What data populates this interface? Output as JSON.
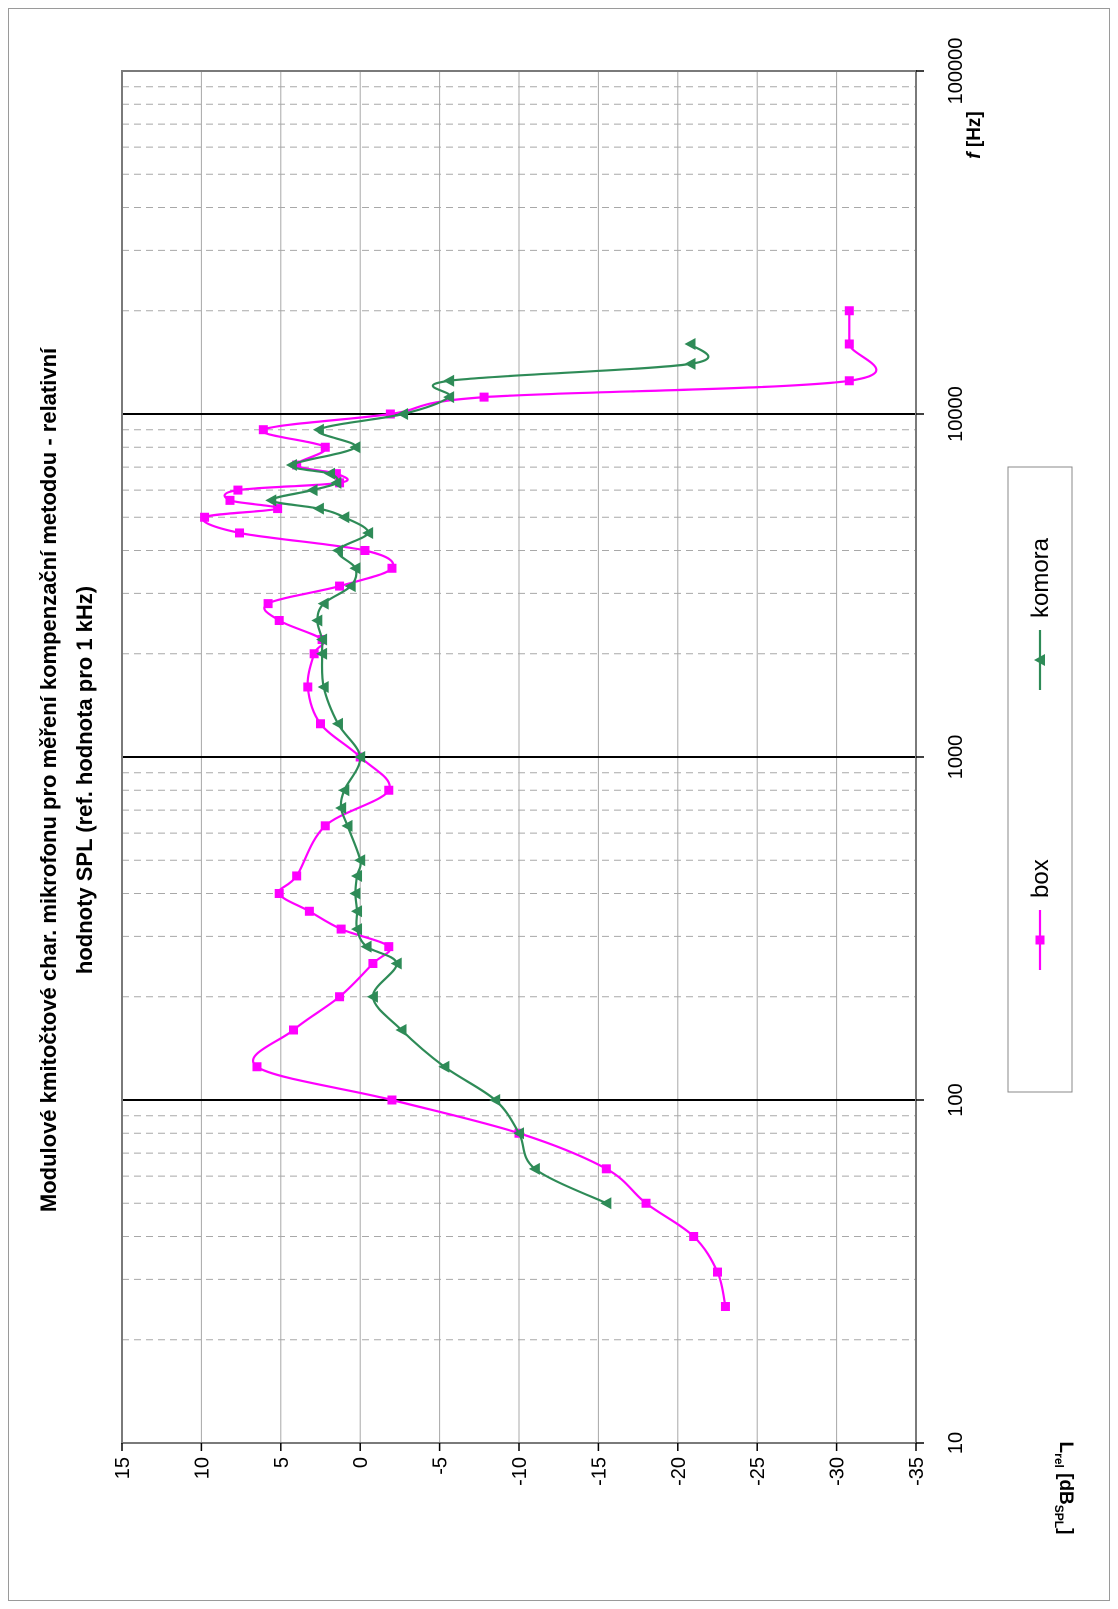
{
  "chart_data": {
    "type": "line",
    "title_line1": "Modulové kmitočtové char. mikrofonu pro měření kompenzační metodou - relativní",
    "title_line2": "hodnoty SPL (ref. hodnota pro 1 kHz)",
    "xlabel_main": "f",
    "xlabel_unit": " [Hz]",
    "ylabel_main": "L",
    "ylabel_sub": "rel",
    "ylabel_unit_a": " [dB",
    "ylabel_unit_sub": "SPL",
    "ylabel_unit_b": "]",
    "x_scale": "log",
    "xlim": [
      10,
      100000
    ],
    "ylim": [
      -35,
      15
    ],
    "x_ticks": [
      "10",
      "100",
      "1000",
      "10000",
      "100000"
    ],
    "x_tick_values": [
      10,
      100,
      1000,
      10000,
      100000
    ],
    "y_ticks": [
      "15",
      "10",
      "5",
      "0",
      "-5",
      "-10",
      "-15",
      "-20",
      "-25",
      "-30",
      "-35"
    ],
    "y_tick_values": [
      15,
      10,
      5,
      0,
      -5,
      -10,
      -15,
      -20,
      -25,
      -30,
      -35
    ],
    "grid": true,
    "legend_position": "right",
    "series": [
      {
        "name": "box",
        "color": "#ff00ff",
        "marker": "square",
        "x": [
          25,
          31.5,
          40,
          50,
          63,
          80,
          100,
          125,
          160,
          200,
          250,
          280,
          315,
          355,
          400,
          450,
          630,
          800,
          1000,
          1250,
          1600,
          2000,
          2200,
          2500,
          2800,
          3150,
          3550,
          4000,
          4500,
          5000,
          5300,
          5600,
          6000,
          6300,
          6700,
          7100,
          8000,
          9000,
          10000,
          11200,
          12500,
          16000,
          20000
        ],
        "y": [
          -23,
          -22.5,
          -21,
          -18,
          -15.5,
          -10,
          -2,
          6.5,
          4.2,
          1.3,
          -0.8,
          -1.8,
          1.2,
          3.2,
          5.1,
          4.0,
          2.2,
          -1.8,
          0,
          2.5,
          3.3,
          2.9,
          2.4,
          5.1,
          5.8,
          1.3,
          -2.0,
          -0.3,
          7.6,
          9.8,
          5.2,
          8.2,
          7.7,
          1.3,
          1.5,
          4.0,
          2.2,
          6.1,
          -1.9,
          -7.8,
          -30.8,
          -30.8,
          -30.8
        ]
      },
      {
        "name": "komora",
        "color": "#2e8b57",
        "marker": "triangle",
        "x": [
          50,
          63,
          80,
          100,
          125,
          160,
          200,
          250,
          280,
          315,
          355,
          400,
          450,
          500,
          630,
          710,
          800,
          1000,
          1250,
          1600,
          2000,
          2200,
          2500,
          2800,
          3150,
          3550,
          4000,
          4500,
          5000,
          5300,
          5600,
          6000,
          6300,
          6700,
          7100,
          8000,
          9000,
          10000,
          11200,
          12500,
          14000,
          16000
        ],
        "y": [
          -15.5,
          -11,
          -10,
          -8.5,
          -5.3,
          -2.6,
          -0.8,
          -2.3,
          -0.4,
          0.2,
          0.2,
          0.3,
          0.2,
          0,
          0.8,
          1.2,
          1.0,
          0,
          1.4,
          2.3,
          2.4,
          2.4,
          2.7,
          2.3,
          0.6,
          0.3,
          1.4,
          -0.5,
          1.0,
          2.6,
          5.6,
          3.0,
          1.5,
          1.9,
          4.3,
          0.3,
          2.6,
          -2.7,
          -5.6,
          -5.6,
          -20.8,
          -20.8
        ]
      }
    ]
  }
}
